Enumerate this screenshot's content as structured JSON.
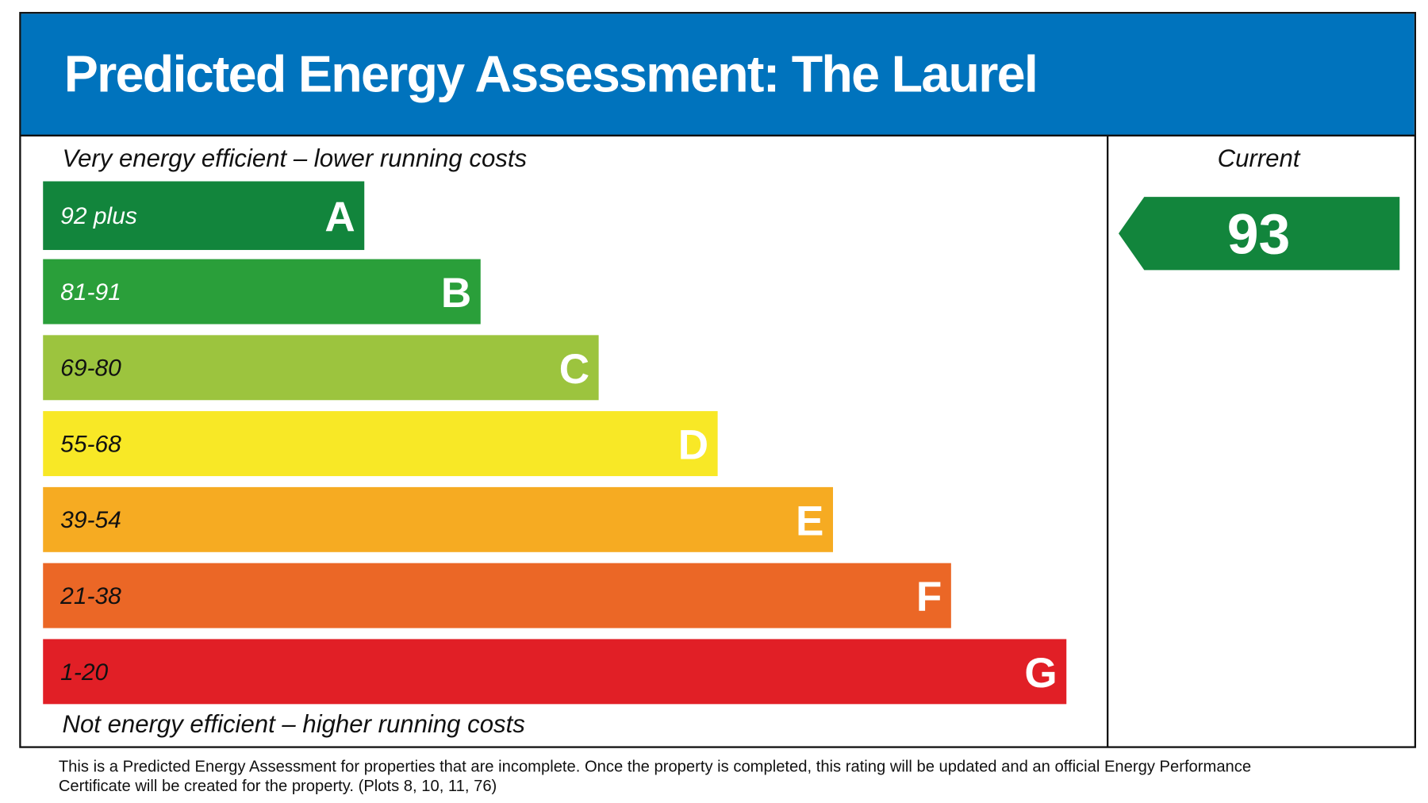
{
  "header": {
    "title": "Predicted Energy Assessment: The Laurel"
  },
  "top_label": "Very energy efficient – lower running costs",
  "bottom_label": "Not energy efficient – higher running costs",
  "bands": [
    {
      "range": "92 plus",
      "letter": "A",
      "color": "#12853c"
    },
    {
      "range": "81-91",
      "letter": "B",
      "color": "#2a9f3a"
    },
    {
      "range": "69-80",
      "letter": "C",
      "color": "#9cc43e"
    },
    {
      "range": "55-68",
      "letter": "D",
      "color": "#f8e826"
    },
    {
      "range": "39-54",
      "letter": "E",
      "color": "#f6ab22"
    },
    {
      "range": "21-38",
      "letter": "F",
      "color": "#eb6726"
    },
    {
      "range": "1-20",
      "letter": "G",
      "color": "#e11f26"
    }
  ],
  "current": {
    "label": "Current",
    "value": "93",
    "color": "#12853c"
  },
  "footnote": [
    "This is a Predicted Energy Assessment for properties that are incomplete. Once the property is completed, this rating will be updated and an official Energy Performance",
    "Certificate will be created for the property. (Plots 8, 10, 11, 76)"
  ]
}
